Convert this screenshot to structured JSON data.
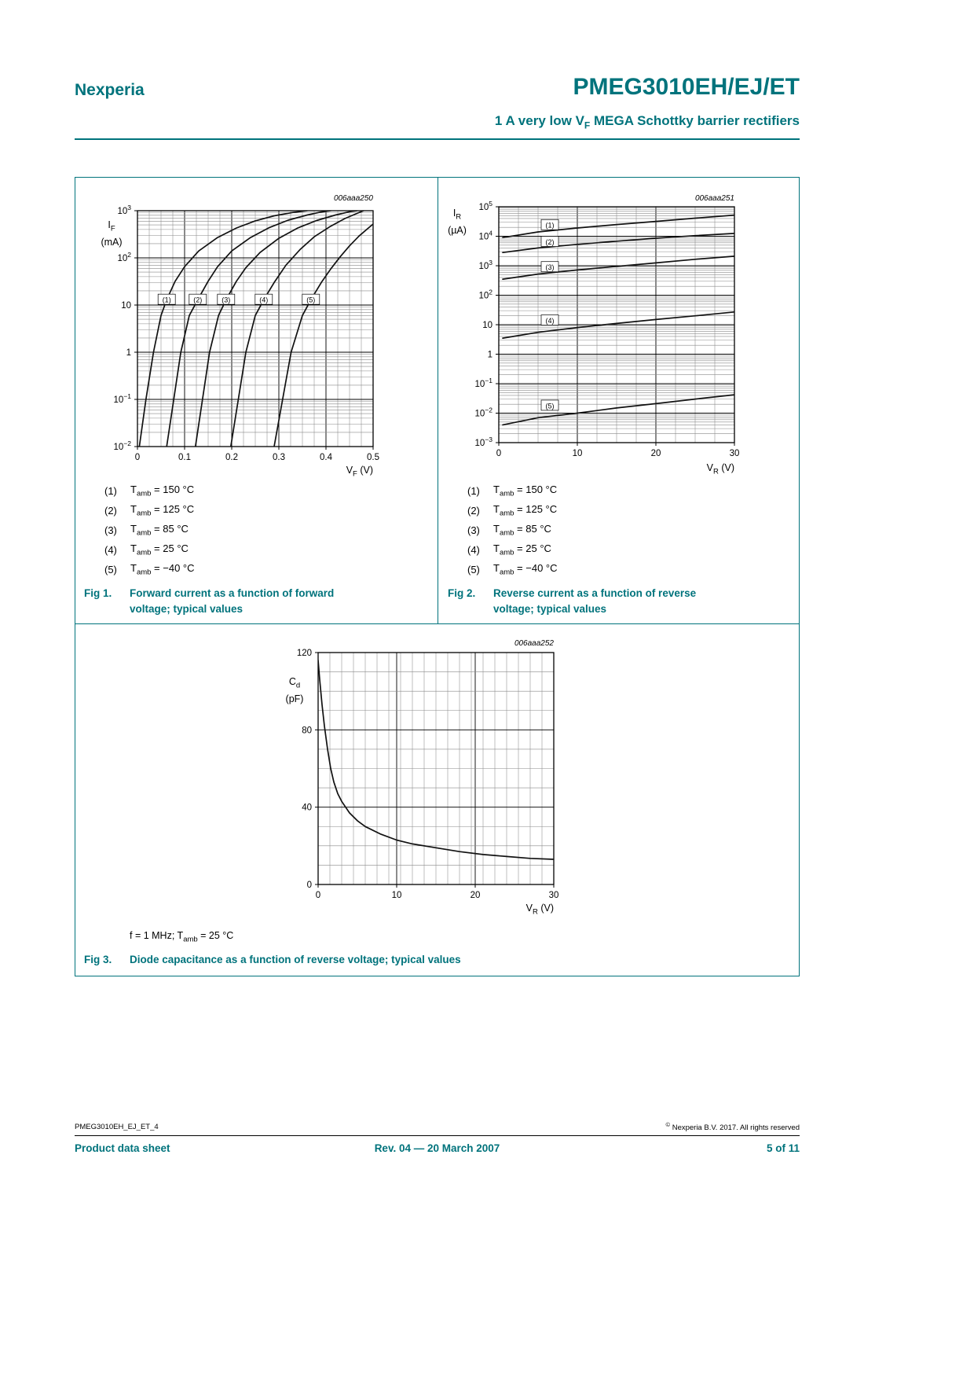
{
  "colors": {
    "accent": "#00737C"
  },
  "header": {
    "brand": "Nexperia",
    "title": "PMEG3010EH/EJ/ET",
    "subtitle_pre": "1 A very low V",
    "subtitle_sub": "F",
    "subtitle_post": " MEGA Schottky barrier rectifiers"
  },
  "legend": {
    "items": [
      {
        "num": "(1)",
        "t": "T",
        "sub": "amb",
        "rest": " = 150 °C"
      },
      {
        "num": "(2)",
        "t": "T",
        "sub": "amb",
        "rest": " = 125 °C"
      },
      {
        "num": "(3)",
        "t": "T",
        "sub": "amb",
        "rest": " = 85 °C"
      },
      {
        "num": "(4)",
        "t": "T",
        "sub": "amb",
        "rest": " = 25 °C"
      },
      {
        "num": "(5)",
        "t": "T",
        "sub": "amb",
        "rest": " = −40 °C"
      }
    ]
  },
  "figures": [
    {
      "cap_label": "Fig 1.",
      "cap_line1": "Forward current as a function of forward",
      "cap_line2": "voltage; typical values",
      "code": "006aaa250",
      "y_sym": "I",
      "y_sub": "F",
      "y_unit": "(mA)",
      "x_sym": "V",
      "x_sub": "F",
      "x_unit": " (V)"
    },
    {
      "cap_label": "Fig 2.",
      "cap_line1": "Reverse current as a function of reverse",
      "cap_line2": "voltage; typical values",
      "code": "006aaa251",
      "y_sym": "I",
      "y_sub": "R",
      "y_unit": "(µA)",
      "x_sym": "V",
      "x_sub": "R",
      "x_unit": " (V)"
    },
    {
      "cap_label": "Fig 3.",
      "cap_line1": "Diode capacitance as a function of reverse voltage; typical values",
      "cap_line2": "",
      "code": "006aaa252",
      "y_sym": "C",
      "y_sub": "d",
      "y_unit": "(pF)",
      "x_sym": "V",
      "x_sub": "R",
      "x_unit": " (V)",
      "note_pre": "f = 1 MHz; T",
      "note_sub": "amb",
      "note_post": " = 25 °C"
    }
  ],
  "footer": {
    "doc_id": "PMEG3010EH_EJ_ET_4",
    "copyright_sym": "©",
    "copyright_text": " Nexperia B.V. 2017. All rights reserved",
    "left": "Product data sheet",
    "center": "Rev. 04 — 20 March 2007",
    "right": "5 of 11"
  },
  "chart_data": [
    {
      "id": "fig1",
      "type": "line",
      "title": "Forward current as a function of forward voltage; typical values",
      "code": "006aaa250",
      "xlabel": "VF (V)",
      "ylabel": "IF (mA)",
      "y_scale": "log",
      "ylim": [
        0.01,
        1000
      ],
      "xlim": [
        0,
        0.5
      ],
      "x_ticks": [
        {
          "v": 0,
          "label": "0"
        },
        {
          "v": 0.1,
          "label": "0.1"
        },
        {
          "v": 0.2,
          "label": "0.2"
        },
        {
          "v": 0.3,
          "label": "0.3"
        },
        {
          "v": 0.4,
          "label": "0.4"
        },
        {
          "v": 0.5,
          "label": "0.5"
        }
      ],
      "y_ticks": [
        {
          "v": 1000,
          "main": "10",
          "exp": "3"
        },
        {
          "v": 100,
          "main": "10",
          "exp": "2"
        },
        {
          "v": 10,
          "main": "10"
        },
        {
          "v": 1,
          "main": "1"
        },
        {
          "v": 0.1,
          "main": "10",
          "exp": "−1"
        },
        {
          "v": 0.01,
          "main": "10",
          "exp": "−2"
        }
      ],
      "grid": {
        "x_minor": 0.025
      },
      "series": [
        {
          "name": "Tamb = 150 °C",
          "label": {
            "text": "(1)",
            "x": 0.062,
            "y": 13
          },
          "points": [
            [
              0.004,
              0.01
            ],
            [
              0.018,
              0.1
            ],
            [
              0.034,
              1
            ],
            [
              0.05,
              6
            ],
            [
              0.062,
              13
            ],
            [
              0.08,
              32
            ],
            [
              0.1,
              65
            ],
            [
              0.13,
              140
            ],
            [
              0.17,
              270
            ],
            [
              0.21,
              430
            ],
            [
              0.25,
              610
            ],
            [
              0.29,
              780
            ],
            [
              0.33,
              920
            ],
            [
              0.36,
              1000
            ]
          ]
        },
        {
          "name": "Tamb = 125 °C",
          "label": {
            "text": "(2)",
            "x": 0.128,
            "y": 13
          },
          "points": [
            [
              0.062,
              0.01
            ],
            [
              0.077,
              0.1
            ],
            [
              0.092,
              1
            ],
            [
              0.11,
              6
            ],
            [
              0.128,
              13
            ],
            [
              0.15,
              32
            ],
            [
              0.17,
              65
            ],
            [
              0.2,
              140
            ],
            [
              0.24,
              270
            ],
            [
              0.28,
              440
            ],
            [
              0.32,
              630
            ],
            [
              0.36,
              810
            ],
            [
              0.39,
              940
            ],
            [
              0.41,
              1000
            ]
          ]
        },
        {
          "name": "Tamb = 85 °C",
          "label": {
            "text": "(3)",
            "x": 0.188,
            "y": 13
          },
          "points": [
            [
              0.123,
              0.01
            ],
            [
              0.138,
              0.1
            ],
            [
              0.153,
              1
            ],
            [
              0.172,
              6
            ],
            [
              0.188,
              13
            ],
            [
              0.21,
              32
            ],
            [
              0.23,
              62
            ],
            [
              0.26,
              130
            ],
            [
              0.3,
              260
            ],
            [
              0.34,
              430
            ],
            [
              0.38,
              620
            ],
            [
              0.42,
              810
            ],
            [
              0.45,
              950
            ],
            [
              0.466,
              1000
            ]
          ]
        },
        {
          "name": "Tamb = 25 °C",
          "label": {
            "text": "(4)",
            "x": 0.268,
            "y": 13
          },
          "points": [
            [
              0.198,
              0.01
            ],
            [
              0.214,
              0.1
            ],
            [
              0.23,
              1
            ],
            [
              0.25,
              6
            ],
            [
              0.268,
              13
            ],
            [
              0.29,
              30
            ],
            [
              0.315,
              70
            ],
            [
              0.345,
              150
            ],
            [
              0.375,
              280
            ],
            [
              0.41,
              470
            ],
            [
              0.44,
              680
            ],
            [
              0.465,
              870
            ],
            [
              0.48,
              1000
            ]
          ]
        },
        {
          "name": "Tamb = −40 °C",
          "label": {
            "text": "(5)",
            "x": 0.368,
            "y": 13
          },
          "points": [
            [
              0.29,
              0.01
            ],
            [
              0.308,
              0.1
            ],
            [
              0.326,
              1
            ],
            [
              0.35,
              6
            ],
            [
              0.368,
              13
            ],
            [
              0.39,
              30
            ],
            [
              0.41,
              58
            ],
            [
              0.43,
              105
            ],
            [
              0.45,
              180
            ],
            [
              0.47,
              290
            ],
            [
              0.49,
              430
            ],
            [
              0.5,
              520
            ]
          ]
        }
      ]
    },
    {
      "id": "fig2",
      "type": "line",
      "title": "Reverse current as a function of reverse voltage; typical values",
      "code": "006aaa251",
      "xlabel": "VR (V)",
      "ylabel": "IR (µA)",
      "y_scale": "log",
      "ylim": [
        0.001,
        100000
      ],
      "xlim": [
        0,
        30
      ],
      "x_ticks": [
        {
          "v": 0,
          "label": "0"
        },
        {
          "v": 10,
          "label": "10"
        },
        {
          "v": 20,
          "label": "20"
        },
        {
          "v": 30,
          "label": "30"
        }
      ],
      "y_ticks": [
        {
          "v": 100000,
          "main": "10",
          "exp": "5"
        },
        {
          "v": 10000,
          "main": "10",
          "exp": "4"
        },
        {
          "v": 1000,
          "main": "10",
          "exp": "3"
        },
        {
          "v": 100,
          "main": "10",
          "exp": "2"
        },
        {
          "v": 10,
          "main": "10"
        },
        {
          "v": 1,
          "main": "1"
        },
        {
          "v": 0.1,
          "main": "10",
          "exp": "−1"
        },
        {
          "v": 0.01,
          "main": "10",
          "exp": "−2"
        },
        {
          "v": 0.001,
          "main": "10",
          "exp": "−3"
        }
      ],
      "grid": {
        "x_minor": 2.5
      },
      "series": [
        {
          "name": "Tamb = 150 °C",
          "label": {
            "text": "(1)",
            "x": 6.5,
            "y": 24000
          },
          "points": [
            [
              0.5,
              9000
            ],
            [
              5,
              14000
            ],
            [
              10,
              19000
            ],
            [
              15,
              25000
            ],
            [
              20,
              32000
            ],
            [
              25,
              41000
            ],
            [
              30,
              52000
            ]
          ]
        },
        {
          "name": "Tamb = 125 °C",
          "label": {
            "text": "(2)",
            "x": 6.5,
            "y": 6500
          },
          "points": [
            [
              0.5,
              2800
            ],
            [
              5,
              4000
            ],
            [
              10,
              5300
            ],
            [
              15,
              6800
            ],
            [
              20,
              8600
            ],
            [
              25,
              10500
            ],
            [
              30,
              12500
            ]
          ]
        },
        {
          "name": "Tamb = 85 °C",
          "label": {
            "text": "(3)",
            "x": 6.5,
            "y": 900
          },
          "points": [
            [
              0.5,
              350
            ],
            [
              5,
              520
            ],
            [
              10,
              720
            ],
            [
              15,
              950
            ],
            [
              20,
              1250
            ],
            [
              25,
              1650
            ],
            [
              30,
              2100
            ]
          ]
        },
        {
          "name": "Tamb = 25 °C",
          "label": {
            "text": "(4)",
            "x": 6.5,
            "y": 14
          },
          "points": [
            [
              0.5,
              3.5
            ],
            [
              5,
              5.5
            ],
            [
              10,
              8
            ],
            [
              15,
              11
            ],
            [
              20,
              15
            ],
            [
              25,
              20
            ],
            [
              30,
              27
            ]
          ]
        },
        {
          "name": "Tamb = −40 °C",
          "label": {
            "text": "(5)",
            "x": 6.5,
            "y": 0.018
          },
          "points": [
            [
              0.5,
              0.004
            ],
            [
              5,
              0.007
            ],
            [
              10,
              0.01
            ],
            [
              15,
              0.015
            ],
            [
              20,
              0.021
            ],
            [
              25,
              0.03
            ],
            [
              30,
              0.042
            ]
          ]
        }
      ]
    },
    {
      "id": "fig3",
      "type": "line",
      "title": "Diode capacitance as a function of reverse voltage; typical values",
      "code": "006aaa252",
      "xlabel": "VR (V)",
      "ylabel": "Cd (pF)",
      "condition": "f = 1 MHz; Tamb = 25 °C",
      "y_scale": "linear",
      "ylim": [
        0,
        120
      ],
      "xlim": [
        0,
        30
      ],
      "x_ticks": [
        {
          "v": 0,
          "label": "0"
        },
        {
          "v": 10,
          "label": "10"
        },
        {
          "v": 20,
          "label": "20"
        },
        {
          "v": 30,
          "label": "30"
        }
      ],
      "y_ticks": [
        {
          "v": 120,
          "main": "120"
        },
        {
          "v": 80,
          "main": "80"
        },
        {
          "v": 40,
          "main": "40"
        },
        {
          "v": 0,
          "main": "0"
        }
      ],
      "grid": {
        "x_minor": 1.5,
        "y_minor": 10
      },
      "series": [
        {
          "name": "Cd",
          "points": [
            [
              0,
              116
            ],
            [
              0.2,
              106
            ],
            [
              0.5,
              93
            ],
            [
              0.8,
              82
            ],
            [
              1.2,
              70
            ],
            [
              1.6,
              60
            ],
            [
              2,
              53
            ],
            [
              2.5,
              47
            ],
            [
              3,
              43
            ],
            [
              4,
              37
            ],
            [
              5,
              33
            ],
            [
              6,
              30
            ],
            [
              8,
              26
            ],
            [
              10,
              23
            ],
            [
              12,
              21
            ],
            [
              15,
              19
            ],
            [
              18,
              17
            ],
            [
              21,
              15.5
            ],
            [
              24,
              14.5
            ],
            [
              27,
              13.5
            ],
            [
              30,
              13
            ]
          ]
        }
      ]
    }
  ]
}
